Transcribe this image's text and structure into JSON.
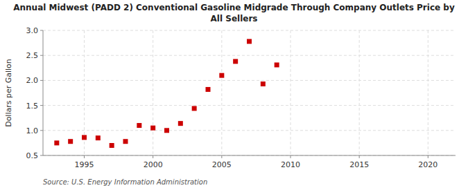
{
  "chart_data": {
    "type": "scatter",
    "title": "Annual Midwest (PADD 2) Conventional Gasoline Midgrade Through Company Outlets Price by\nAll Sellers",
    "ylabel": "Dollars per Gallon",
    "annotations": [
      "Source: U.S. Energy Information Administration"
    ],
    "x": [
      1993,
      1994,
      1995,
      1996,
      1997,
      1998,
      1999,
      2000,
      2001,
      2002,
      2003,
      2004,
      2005,
      2006,
      2007,
      2008,
      2009
    ],
    "values": [
      0.75,
      0.78,
      0.86,
      0.85,
      0.7,
      0.78,
      1.1,
      1.05,
      1.0,
      1.14,
      1.44,
      1.82,
      2.1,
      2.38,
      2.78,
      1.93,
      2.31
    ],
    "color": "#cc0000",
    "marker": "square",
    "xlim": [
      1992,
      2022
    ],
    "ylim": [
      0.5,
      3.0
    ],
    "xticks": [
      1995,
      2000,
      2005,
      2010,
      2015,
      2020
    ],
    "yticks": [
      0.5,
      {
        "value": 1.0,
        "label": "1.0"
      },
      1.5,
      {
        "value": 2.0,
        "label": "2.0"
      },
      2.5,
      {
        "value": 3.0,
        "label": "3.0"
      }
    ],
    "grid": true
  }
}
